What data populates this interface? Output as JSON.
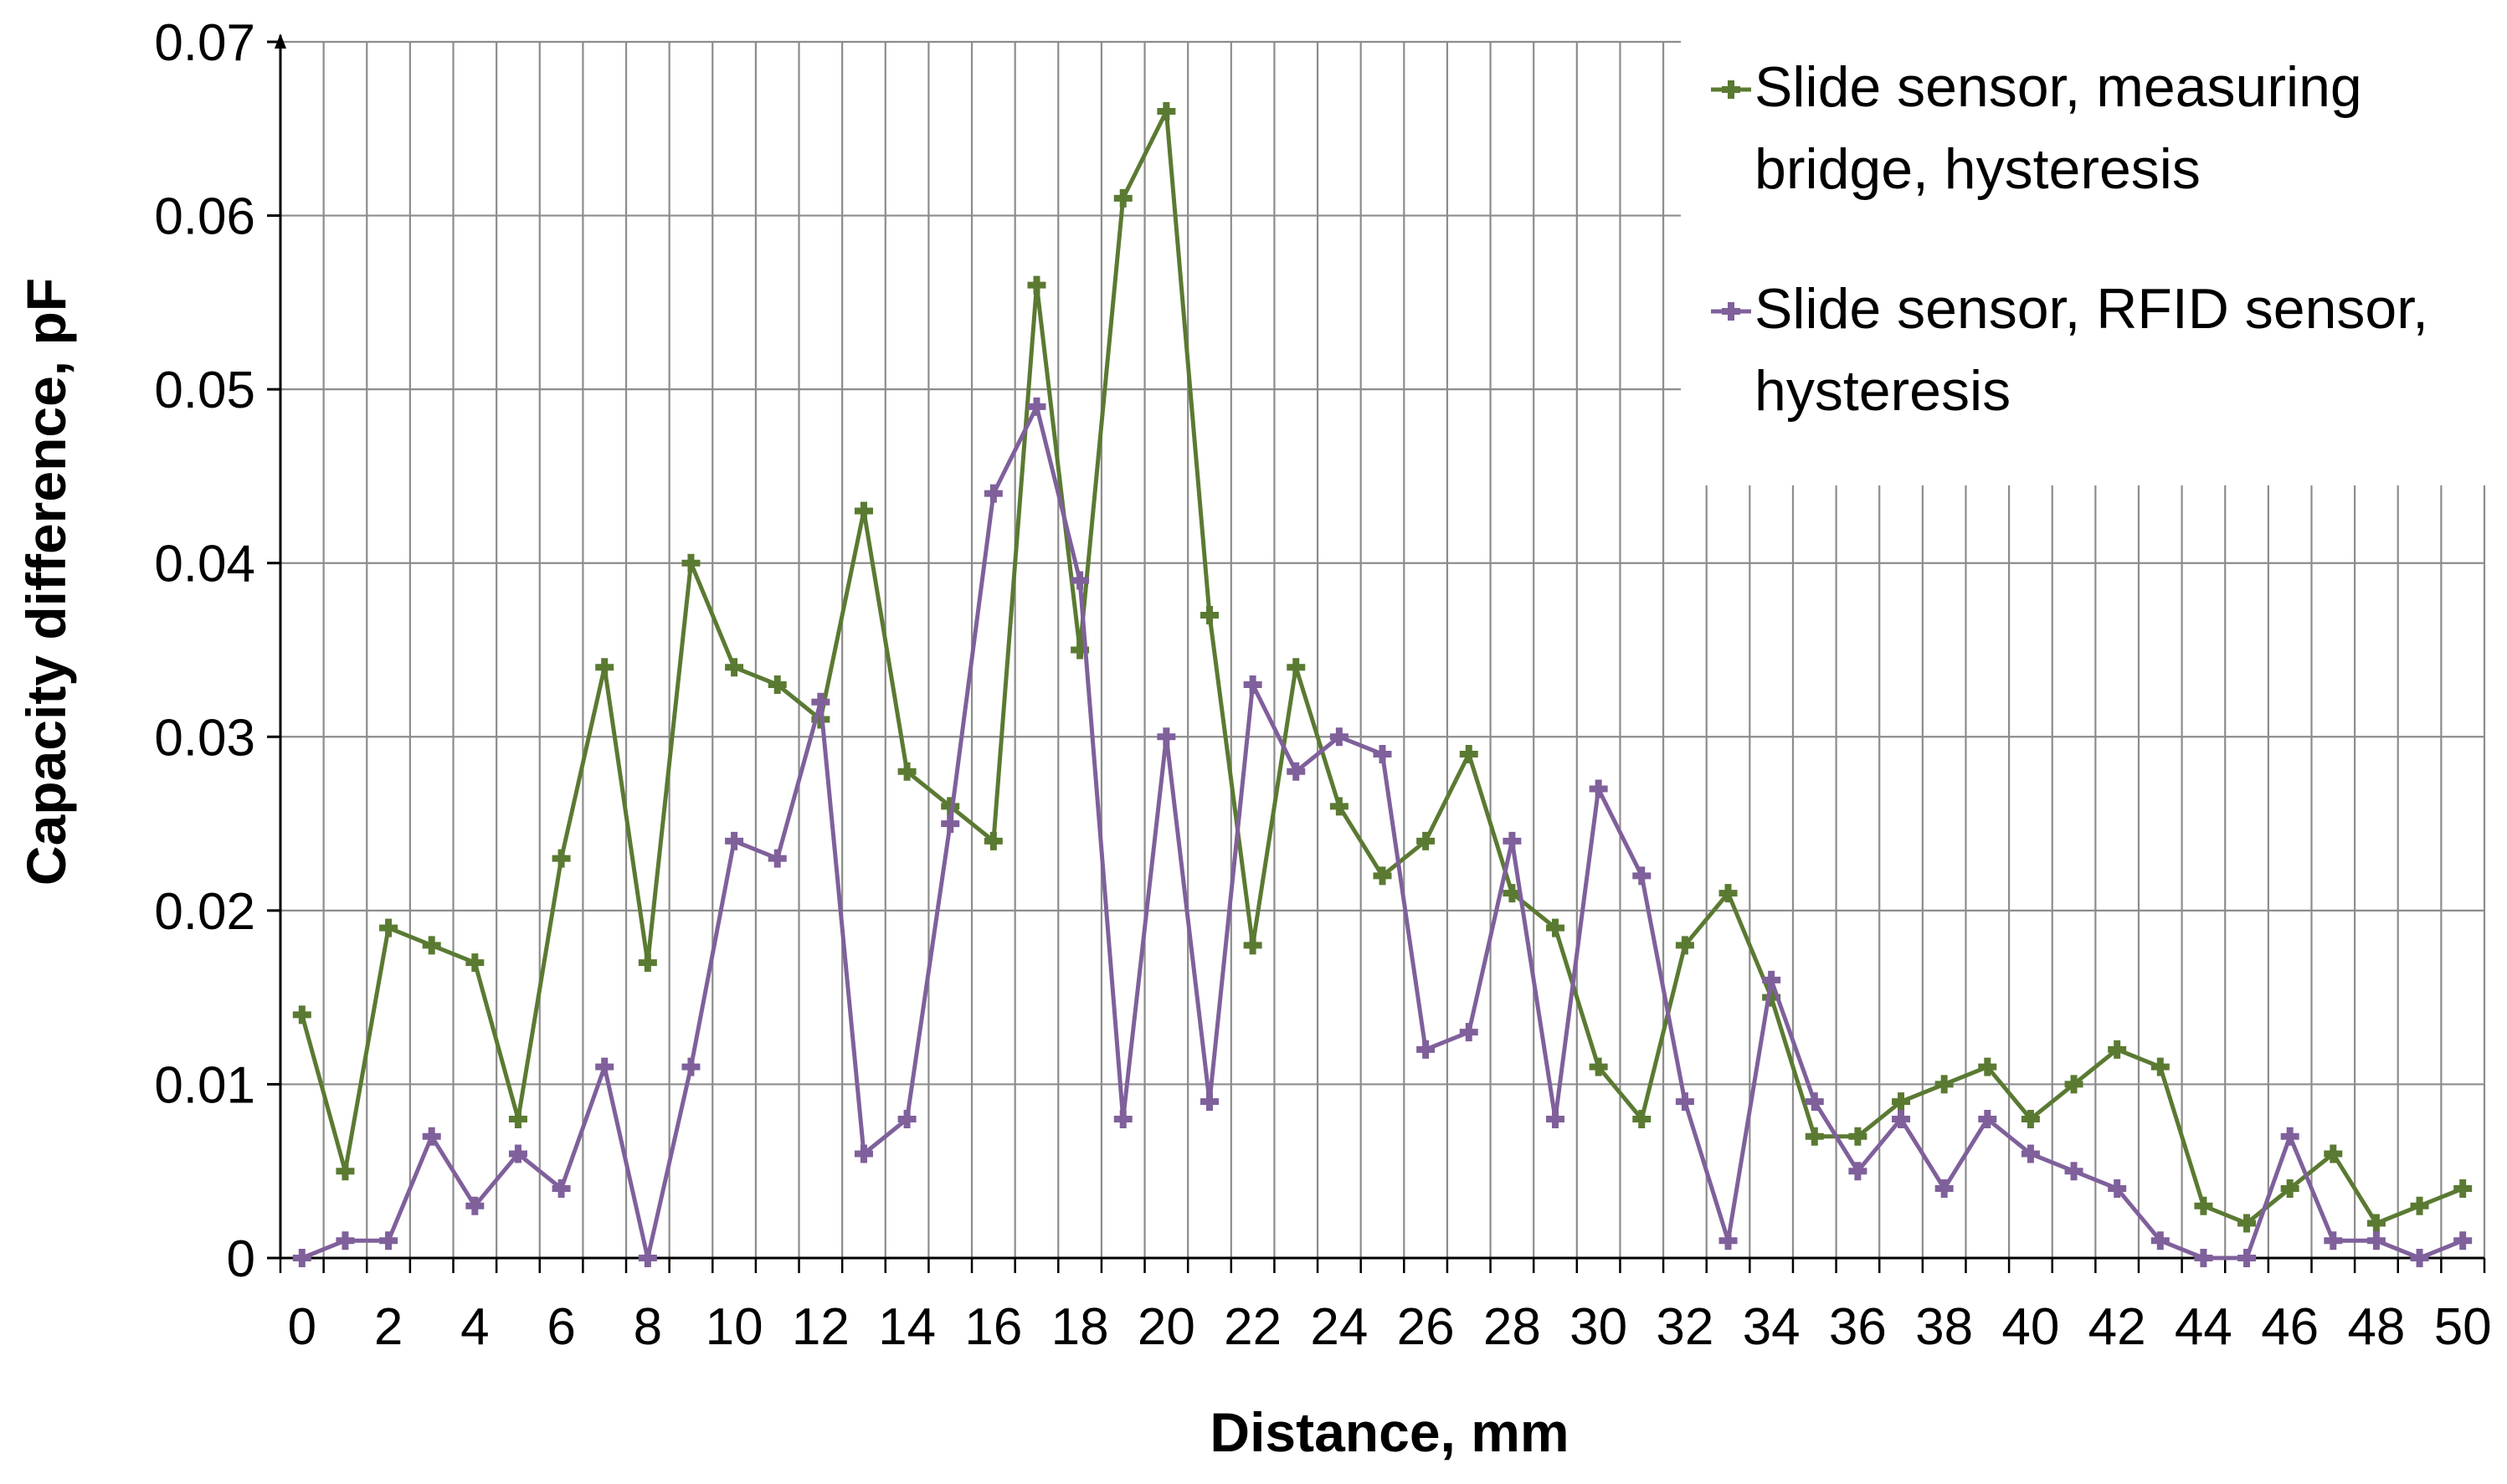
{
  "chart_data": {
    "type": "line",
    "title": "",
    "xlabel": "Distance, mm",
    "ylabel": "Capacity difference, pF",
    "xlim": [
      0,
      50
    ],
    "ylim": [
      0,
      0.07
    ],
    "x_ticks": [
      "0",
      "2",
      "4",
      "6",
      "8",
      "10",
      "12",
      "14",
      "16",
      "18",
      "20",
      "22",
      "24",
      "26",
      "28",
      "30",
      "32",
      "34",
      "36",
      "38",
      "40",
      "42",
      "44",
      "46",
      "48",
      "50"
    ],
    "y_ticks": [
      "0",
      "0.01",
      "0.02",
      "0.03",
      "0.04",
      "0.05",
      "0.06",
      "0.07"
    ],
    "grid": "on",
    "legend_position": "top-right",
    "legend": [
      {
        "lines": [
          "Slide sensor, measuring",
          "bridge, hysteresis"
        ]
      },
      {
        "lines": [
          "Slide sensor, RFID sensor,",
          "hysteresis"
        ]
      }
    ],
    "x": [
      0,
      1,
      2,
      3,
      4,
      5,
      6,
      7,
      8,
      9,
      10,
      11,
      12,
      13,
      14,
      15,
      16,
      17,
      18,
      19,
      20,
      21,
      22,
      23,
      24,
      25,
      26,
      27,
      28,
      29,
      30,
      31,
      32,
      33,
      34,
      35,
      36,
      37,
      38,
      39,
      40,
      41,
      42,
      43,
      44,
      45,
      46,
      47,
      48,
      49,
      50
    ],
    "series": [
      {
        "name": "Slide sensor, measuring bridge, hysteresis",
        "color": "#5a7a32",
        "values": [
          0.014,
          0.005,
          0.019,
          0.018,
          0.017,
          0.008,
          0.023,
          0.034,
          0.017,
          0.04,
          0.034,
          0.033,
          0.031,
          0.043,
          0.028,
          0.026,
          0.024,
          0.056,
          0.035,
          0.061,
          0.066,
          0.037,
          0.018,
          0.034,
          0.026,
          0.022,
          0.024,
          0.029,
          0.021,
          0.019,
          0.011,
          0.008,
          0.018,
          0.021,
          0.015,
          0.007,
          0.007,
          0.009,
          0.01,
          0.011,
          0.008,
          0.01,
          0.012,
          0.011,
          0.003,
          0.002,
          0.004,
          0.006,
          0.002,
          0.003,
          0.004
        ]
      },
      {
        "name": "Slide sensor, RFID sensor, hysteresis",
        "color": "#7f609b",
        "values": [
          0.0,
          0.001,
          0.001,
          0.007,
          0.003,
          0.006,
          0.004,
          0.011,
          0.0,
          0.011,
          0.024,
          0.023,
          0.032,
          0.006,
          0.008,
          0.025,
          0.044,
          0.049,
          0.039,
          0.008,
          0.03,
          0.009,
          0.033,
          0.028,
          0.03,
          0.029,
          0.012,
          0.013,
          0.024,
          0.008,
          0.027,
          0.022,
          0.009,
          0.001,
          0.016,
          0.009,
          0.005,
          0.008,
          0.004,
          0.008,
          0.006,
          0.005,
          0.004,
          0.001,
          0.0,
          0.0,
          0.007,
          0.001,
          0.001,
          0.0,
          0.001
        ]
      }
    ]
  }
}
